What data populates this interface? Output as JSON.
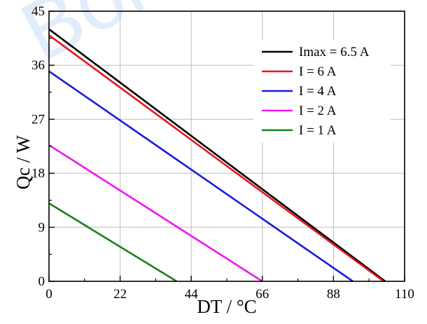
{
  "chart_data": {
    "type": "line",
    "title": "",
    "xlabel": "DT / °C",
    "ylabel": "Qc / W",
    "xlim": [
      0,
      110
    ],
    "ylim": [
      0,
      45
    ],
    "xticks": [
      0,
      22,
      44,
      66,
      88,
      110
    ],
    "yticks": [
      0,
      9,
      18,
      27,
      36,
      45
    ],
    "xtick_labels": [
      "0",
      "22",
      "44",
      "66",
      "88",
      "110"
    ],
    "ytick_labels": [
      "0",
      "9",
      "18",
      "27",
      "36",
      "45"
    ],
    "grid": true,
    "legend_position": "top-right",
    "series": [
      {
        "name": "Imax = 6.5 A",
        "color": "#000000",
        "x": [
          0,
          104
        ],
        "values": [
          42,
          0
        ]
      },
      {
        "name": "I = 6 A",
        "color": "#e8141b",
        "x": [
          0,
          103.5
        ],
        "values": [
          41,
          0
        ]
      },
      {
        "name": "I = 4 A",
        "color": "#1a1ae0",
        "x": [
          0,
          94
        ],
        "values": [
          35,
          0
        ]
      },
      {
        "name": "I = 2 A",
        "color": "#f015f0",
        "x": [
          0,
          66
        ],
        "values": [
          22.7,
          0
        ]
      },
      {
        "name": "I = 1 A",
        "color": "#17801a",
        "x": [
          0,
          39.5
        ],
        "values": [
          13,
          0
        ]
      }
    ]
  },
  "watermark": {
    "text": "Bonani"
  }
}
